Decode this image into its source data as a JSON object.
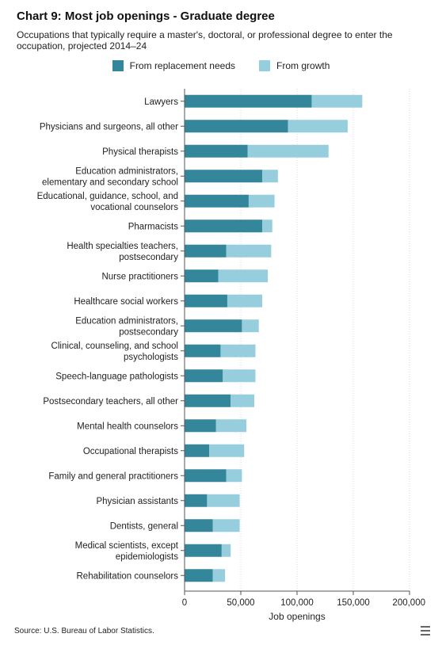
{
  "header": {
    "title": "Chart 9: Most job openings - Graduate degree",
    "subtitle": "Occupations that typically require a master's, doctoral, or professional degree to enter the occupation, projected 2014–24"
  },
  "source": "Source: U.S. Bureau of Labor Statistics.",
  "colors": {
    "replacement": "#34869a",
    "growth": "#97cedd"
  },
  "chart_data": {
    "type": "bar",
    "orientation": "horizontal",
    "stacked": true,
    "xlabel": "Job openings",
    "xlim": [
      0,
      200000
    ],
    "xticks": [
      0,
      50000,
      100000,
      150000,
      200000
    ],
    "xtick_labels": [
      "0",
      "50,000",
      "100,000",
      "150,000",
      "200,000"
    ],
    "grid": true,
    "legend_position": "top-center",
    "categories": [
      [
        "Lawyers"
      ],
      [
        "Physicians and surgeons, all other"
      ],
      [
        "Physical therapists"
      ],
      [
        "Education administrators,",
        "elementary and secondary school"
      ],
      [
        "Educational, guidance, school, and",
        "vocational counselors"
      ],
      [
        "Pharmacists"
      ],
      [
        "Health specialties teachers,",
        "postsecondary"
      ],
      [
        "Nurse practitioners"
      ],
      [
        "Healthcare social workers"
      ],
      [
        "Education administrators,",
        "postsecondary"
      ],
      [
        "Clinical, counseling, and school",
        "psychologists"
      ],
      [
        "Speech-language pathologists"
      ],
      [
        "Postsecondary teachers, all other"
      ],
      [
        "Mental health counselors"
      ],
      [
        "Occupational therapists"
      ],
      [
        "Family and general practitioners"
      ],
      [
        "Physician assistants"
      ],
      [
        "Dentists, general"
      ],
      [
        "Medical scientists, except",
        "epidemiologists"
      ],
      [
        "Rehabilitation counselors"
      ]
    ],
    "series": [
      {
        "name": "From replacement needs",
        "values": [
          113000,
          92000,
          56000,
          69000,
          57000,
          69000,
          37000,
          30000,
          38000,
          51000,
          32000,
          34000,
          41000,
          28000,
          22000,
          37000,
          20000,
          25000,
          33000,
          25000
        ]
      },
      {
        "name": "From growth",
        "values": [
          45000,
          53000,
          72000,
          14000,
          23000,
          9000,
          40000,
          44000,
          31000,
          15000,
          31000,
          29000,
          21000,
          27000,
          31000,
          14000,
          29000,
          24000,
          8000,
          11000
        ]
      }
    ]
  }
}
